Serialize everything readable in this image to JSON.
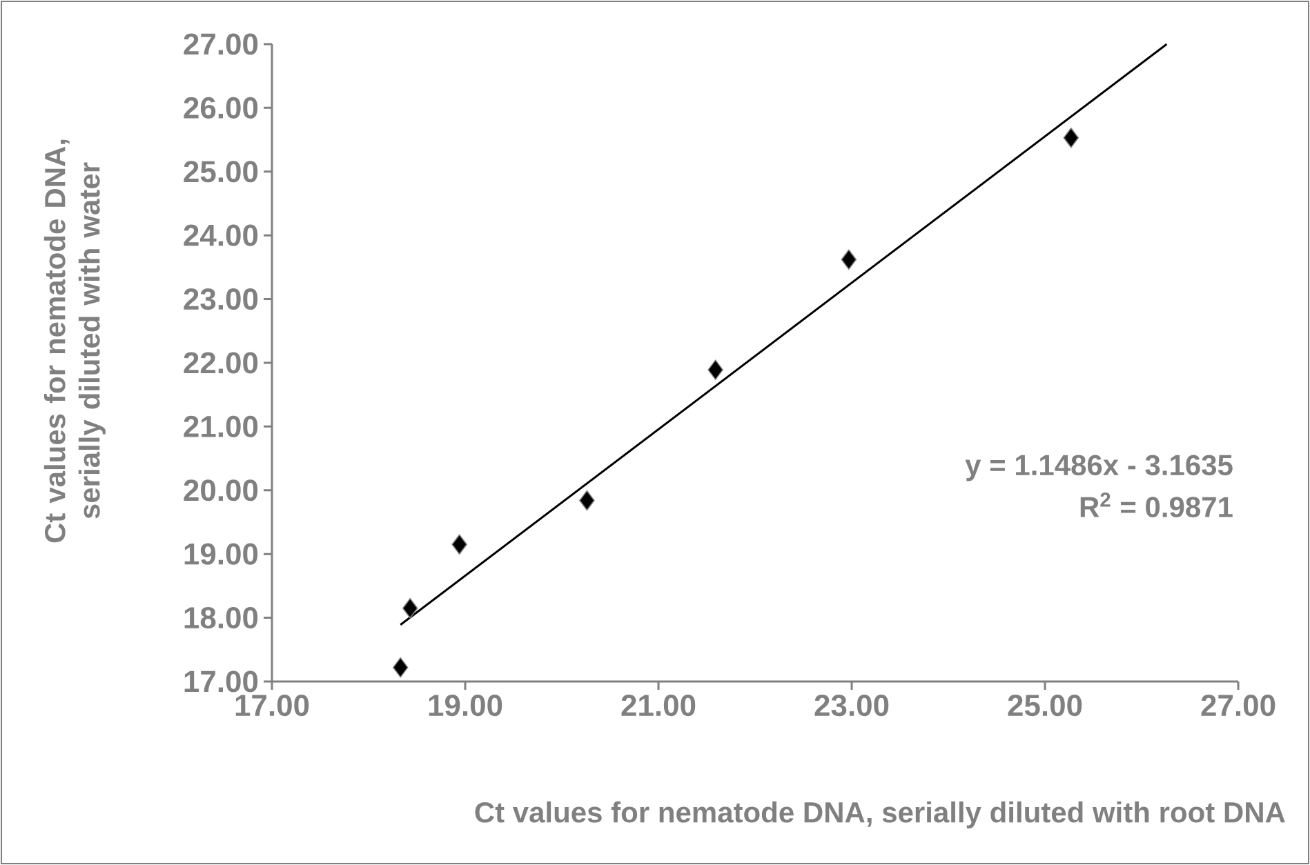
{
  "chart_data": {
    "type": "scatter",
    "xlabel": "Ct values for nematode DNA, serially diluted with root DNA",
    "ylabel": "Ct values for nematode DNA, serially diluted with water",
    "series": [
      {
        "color": "#000000",
        "x": [
          18.33,
          18.43,
          18.94,
          20.26,
          21.59,
          22.97,
          25.27
        ],
        "values": [
          17.22,
          18.15,
          19.15,
          19.84,
          21.89,
          23.62,
          25.53
        ]
      },
      {
        "type": "line",
        "color": "#000000",
        "marker": "none",
        "line_style": "solid",
        "x": [
          18.33,
          26.26
        ],
        "values": [
          17.89,
          27.0
        ]
      }
    ],
    "annotations": [
      "y = 1.1486x - 3.1635",
      "R$^{2}$ = 0.9871"
    ],
    "xlim": [
      17,
      27
    ],
    "ylim": [
      17,
      27
    ],
    "xticks": [
      {
        "value": 17,
        "label": "17.00"
      },
      {
        "value": 19,
        "label": "19.00"
      },
      {
        "value": 21,
        "label": "21.00"
      },
      {
        "value": 23,
        "label": "23.00"
      },
      {
        "value": 25,
        "label": "25.00"
      },
      {
        "value": 27,
        "label": "27.00"
      }
    ],
    "yticks": [
      {
        "value": 17,
        "label": "17.00"
      },
      {
        "value": 18,
        "label": "18.00"
      },
      {
        "value": 19,
        "label": "19.00"
      },
      {
        "value": 20,
        "label": "20.00"
      },
      {
        "value": 21,
        "label": "21.00"
      },
      {
        "value": 22,
        "label": "22.00"
      },
      {
        "value": 23,
        "label": "23.00"
      },
      {
        "value": 24,
        "label": "24.00"
      },
      {
        "value": 25,
        "label": "25.00"
      },
      {
        "value": 26,
        "label": "26.00"
      },
      {
        "value": 27,
        "label": "27.00"
      }
    ],
    "marker": "diamond"
  }
}
